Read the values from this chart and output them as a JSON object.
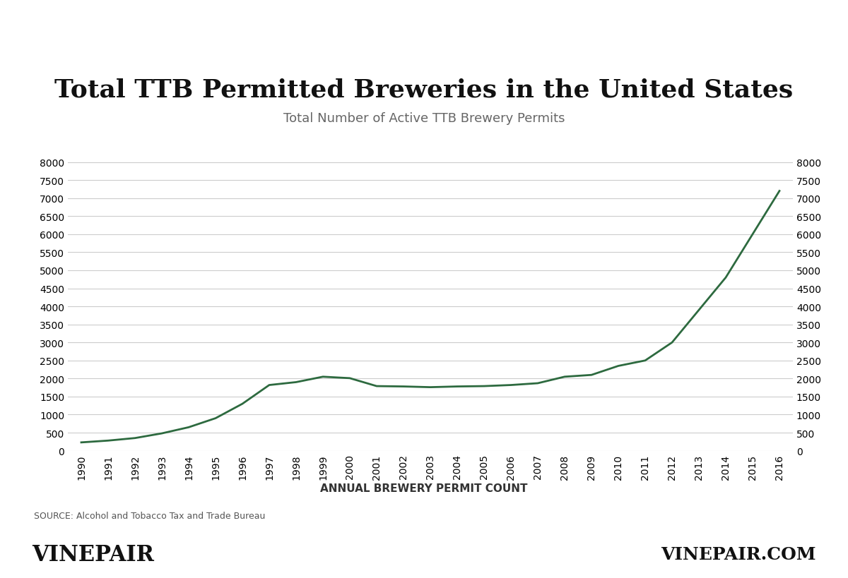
{
  "title": "Total TTB Permitted Breweries in the United States",
  "subtitle": "Total Number of Active TTB Brewery Permits",
  "xlabel": "ANNUAL BREWERY PERMIT COUNT",
  "source": "SOURCE: Alcohol and Tobacco Tax and Trade Bureau",
  "years": [
    1990,
    1991,
    1992,
    1993,
    1994,
    1995,
    1996,
    1997,
    1998,
    1999,
    2000,
    2001,
    2002,
    2003,
    2004,
    2005,
    2006,
    2007,
    2008,
    2009,
    2010,
    2011,
    2012,
    2013,
    2014,
    2015,
    2016
  ],
  "values": [
    230,
    280,
    350,
    480,
    650,
    900,
    1300,
    1820,
    1900,
    2050,
    2010,
    1790,
    1780,
    1760,
    1780,
    1790,
    1820,
    1870,
    2050,
    2100,
    2350,
    2500,
    3000,
    3900,
    4800,
    6000,
    7200
  ],
  "line_color": "#2d6a3f",
  "line_width": 2.0,
  "ylim": [
    0,
    8500
  ],
  "yticks": [
    0,
    500,
    1000,
    1500,
    2000,
    2500,
    3000,
    3500,
    4000,
    4500,
    5000,
    5500,
    6000,
    6500,
    7000,
    7500,
    8000
  ],
  "background_color": "#ffffff",
  "grid_color": "#cccccc",
  "title_fontsize": 26,
  "subtitle_fontsize": 13,
  "tick_fontsize": 10,
  "xlabel_fontsize": 11,
  "source_fontsize": 9,
  "footer_left": "VINEPAIR",
  "footer_right": "VINEPAIR.COM",
  "footer_bg": "#e0e0e0"
}
